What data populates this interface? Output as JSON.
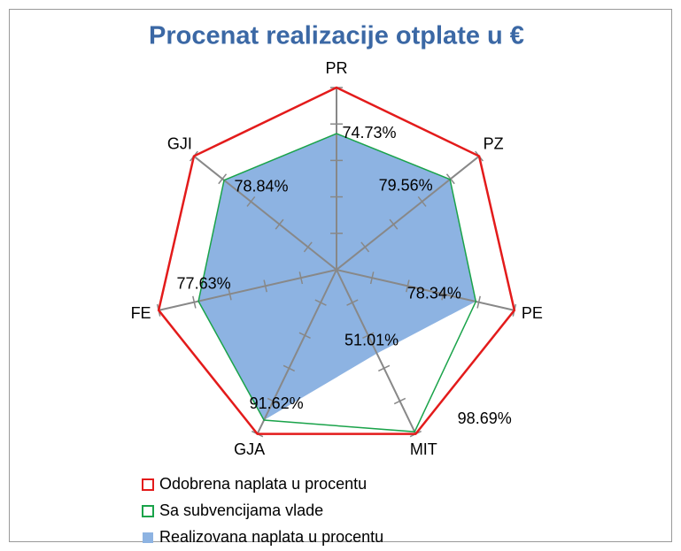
{
  "chart_data": {
    "type": "radar",
    "title": "Procenat realizacije otplate u €",
    "categories": [
      "PR",
      "PZ",
      "PE",
      "MIT",
      "GJA",
      "FE",
      "GJI"
    ],
    "rlim": [
      0,
      100
    ],
    "rticks": [
      0,
      20,
      40,
      60,
      80,
      100
    ],
    "legend": "bottom-left",
    "series": [
      {
        "name": "Odobrena naplata u procentu",
        "color": "#e31b1b",
        "fill": false,
        "values": [
          100,
          100,
          100,
          100,
          100,
          100,
          100
        ]
      },
      {
        "name": "Sa subvencijama vlade",
        "color": "#1aa34a",
        "fill": false,
        "values": [
          74.73,
          79.56,
          78.34,
          98.69,
          91.62,
          77.63,
          78.84
        ],
        "value_labels": [
          null,
          null,
          null,
          "98.69%",
          null,
          null,
          null
        ]
      },
      {
        "name": "Realizovana naplata u procentu",
        "color": "#8db3e2",
        "fill": true,
        "values": [
          74.73,
          79.56,
          78.34,
          51.01,
          91.62,
          77.63,
          78.84
        ],
        "value_labels": [
          "74.73%",
          "79.56%",
          "78.34%",
          "51.01%",
          "91.62%",
          "77.63%",
          "78.84%"
        ]
      }
    ]
  }
}
